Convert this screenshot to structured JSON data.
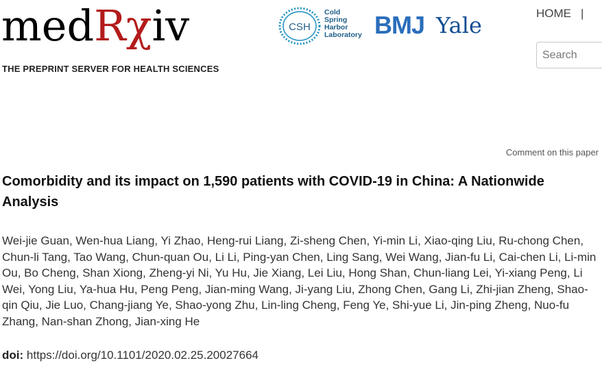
{
  "header": {
    "logo": {
      "wordmark_prefix": "med",
      "wordmark_rx": "Rχ",
      "wordmark_suffix": "iv"
    },
    "tagline": "THE PREPRINT SERVER FOR HEALTH SCIENCES",
    "partners": {
      "csh_initials": "CSH",
      "csh_lines": [
        "Cold",
        "Spring",
        "Harbor",
        "Laboratory"
      ],
      "bmj": "BMJ",
      "yale": "Yale"
    },
    "nav": {
      "home": "HOME",
      "separator": "|"
    },
    "search": {
      "placeholder": "Search",
      "value": ""
    }
  },
  "article": {
    "comment_link": "Comment on this paper",
    "title": "Comorbidity and its impact on 1,590 patients with COVID-19 in China: A Nationwide Analysis",
    "authors": [
      "Wei-jie Guan",
      "Wen-hua Liang",
      "Yi Zhao",
      "Heng-rui Liang",
      "Zi-sheng Chen",
      "Yi-min Li",
      "Xiao-qing Liu",
      "Ru-chong Chen",
      "Chun-li Tang",
      "Tao Wang",
      "Chun-quan Ou",
      "Li Li",
      "Ping-yan Chen",
      "Ling Sang",
      "Wei Wang",
      "Jian-fu Li",
      "Cai-chen Li",
      "Li-min Ou",
      "Bo Cheng",
      "Shan Xiong",
      "Zheng-yi Ni",
      "Yu Hu",
      "Jie Xiang",
      "Lei Liu",
      "Hong Shan",
      "Chun-liang Lei",
      "Yi-xiang Peng",
      "Li Wei",
      "Yong Liu",
      "Ya-hua Hu",
      "Peng Peng",
      "Jian-ming Wang",
      "Ji-yang Liu",
      "Zhong Chen",
      "Gang Li",
      "Zhi-jian Zheng",
      "Shao-qin Qiu",
      "Jie Luo",
      "Chang-jiang Ye",
      "Shao-yong Zhu",
      "Lin-ling Cheng",
      "Feng Ye",
      "Shi-yue Li",
      "Jin-ping Zheng",
      "Nuo-fu Zhang",
      "Nan-shan Zhong",
      "Jian-xing He"
    ],
    "doi_label": "doi:",
    "doi_url": "https://doi.org/10.1101/2020.02.25.20027664"
  },
  "colors": {
    "brand_red": "#b31b1b",
    "csh_blue": "#1f5f8a",
    "bmj_blue": "#2a6ebb",
    "yale_blue": "#0f4d92"
  }
}
